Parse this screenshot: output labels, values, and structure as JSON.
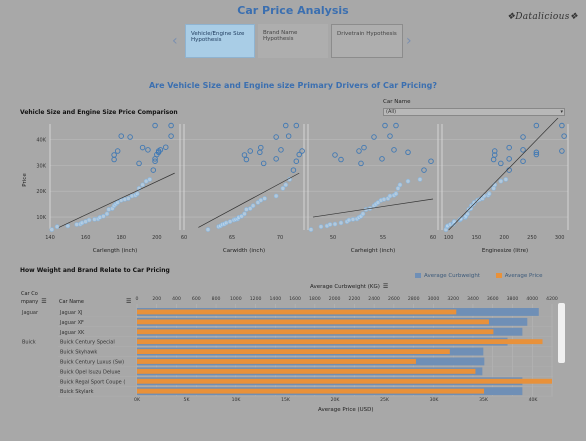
{
  "header": {
    "title": "Car Price Analysis",
    "logo": "❖Datalicious❖"
  },
  "tabs": [
    {
      "label": "Vehicle/Engine Size Hypothesis",
      "active": true
    },
    {
      "label": "Brand Name Hypothesis",
      "active": false
    },
    {
      "label": "Drivetrain Hypothesis",
      "active": false
    }
  ],
  "nav": {
    "left_icon": "chevron-left-icon",
    "right_icon": "chevron-right-icon",
    "left": "‹",
    "right": "›"
  },
  "subtitle": "Are Vehicle Size and Engine size Primary Drivers of Car Pricing?",
  "filter": {
    "label": "Car Name",
    "value": "(All)",
    "caret": "▾"
  },
  "section1": {
    "title": "Vehicle Size and Engine Size Price Comparison"
  },
  "section2": {
    "title": "How Weight and Brand Relate to Car Pricing"
  },
  "colors": {
    "curbweight": "#6f8fb6",
    "price": "#e8913a",
    "scatter": "#3f78b4",
    "accent": "#3b6fb0"
  },
  "chart_data": [
    {
      "type": "scatter",
      "ylabel": "Price",
      "y_ticks": [
        "40K",
        "30K",
        "20K",
        "10K"
      ],
      "y_values": [
        40000,
        30000,
        20000,
        10000
      ],
      "ylim": [
        5000,
        46000
      ],
      "panels": [
        {
          "xlabel": "Carlength (inch)",
          "x_ticks": [
            "140",
            "160",
            "180",
            "200"
          ],
          "x_values": [
            140,
            160,
            180,
            200
          ],
          "xlim": [
            140,
            213
          ],
          "trend": [
            [
              145,
              6000
            ],
            [
              210,
              27000
            ]
          ],
          "points": [
            [
              141,
              5151
            ],
            [
              144,
              6295
            ],
            [
              150,
              6575
            ],
            [
              155,
              7129
            ],
            [
              157,
              7295
            ],
            [
              158,
              7775
            ],
            [
              160,
              8249
            ],
            [
              162,
              8845
            ],
            [
              165,
              9095
            ],
            [
              167,
              9279
            ],
            [
              168,
              9895
            ],
            [
              170,
              10295
            ],
            [
              172,
              11245
            ],
            [
              173,
              12945
            ],
            [
              175,
              13295
            ],
            [
              176,
              14399
            ],
            [
              177,
              15040
            ],
            [
              178,
              15645
            ],
            [
              180,
              16500
            ],
            [
              182,
              16845
            ],
            [
              184,
              17199
            ],
            [
              186,
              18150
            ],
            [
              188,
              18420
            ],
            [
              189,
              19045
            ],
            [
              190,
              21105
            ],
            [
              192,
              22470
            ],
            [
              194,
              23875
            ],
            [
              196,
              24565
            ],
            [
              198,
              28176
            ],
            [
              199,
              31600
            ],
            [
              200,
              34184
            ],
            [
              201,
              35550
            ],
            [
              202,
              36000
            ],
            [
              205,
              37028
            ],
            [
              208,
              41315
            ],
            [
              176,
              32250
            ],
            [
              178,
              35550
            ],
            [
              185,
              40960
            ],
            [
              192,
              36880
            ],
            [
              199,
              45400
            ],
            [
              208,
              45400
            ],
            [
              180,
              41315
            ],
            [
              176,
              34028
            ],
            [
              190,
              30760
            ],
            [
              199,
              32528
            ],
            [
              195,
              36000
            ],
            [
              201,
              35056
            ]
          ]
        },
        {
          "xlabel": "Carwidth (inch)",
          "x_ticks": [
            "60",
            "65",
            "70"
          ],
          "x_values": [
            60,
            65,
            70
          ],
          "xlim": [
            60,
            72.5
          ],
          "trend": [
            [
              61.5,
              6000
            ],
            [
              72,
              27000
            ]
          ],
          "points": [
            [
              62.5,
              5151
            ],
            [
              63.6,
              6295
            ],
            [
              63.8,
              6575
            ],
            [
              64,
              7129
            ],
            [
              64.2,
              7295
            ],
            [
              64.4,
              7775
            ],
            [
              64.8,
              8249
            ],
            [
              65.2,
              8845
            ],
            [
              65.4,
              9095
            ],
            [
              65.6,
              9279
            ],
            [
              65.7,
              9895
            ],
            [
              66,
              10295
            ],
            [
              66.3,
              11245
            ],
            [
              66.5,
              12945
            ],
            [
              66.9,
              13295
            ],
            [
              67.2,
              14399
            ],
            [
              67.7,
              15645
            ],
            [
              68,
              16500
            ],
            [
              68.4,
              17199
            ],
            [
              69.6,
              18150
            ],
            [
              70.3,
              21105
            ],
            [
              70.6,
              22470
            ],
            [
              71,
              24565
            ],
            [
              71.4,
              28176
            ],
            [
              71.7,
              31600
            ],
            [
              72,
              34184
            ],
            [
              72.3,
              35550
            ],
            [
              66.5,
              32250
            ],
            [
              66.9,
              35550
            ],
            [
              68,
              36880
            ],
            [
              69.6,
              40960
            ],
            [
              70.6,
              45400
            ],
            [
              71.7,
              45400
            ],
            [
              70.9,
              41315
            ],
            [
              66.3,
              34028
            ],
            [
              68.3,
              30760
            ],
            [
              69.6,
              32528
            ],
            [
              70.1,
              36000
            ],
            [
              67.9,
              35056
            ]
          ]
        },
        {
          "xlabel": "Carheight (inch)",
          "x_ticks": [
            "50",
            "55",
            "60"
          ],
          "x_values": [
            50,
            55,
            60
          ],
          "xlim": [
            47.5,
            60.5
          ],
          "trend": [
            [
              48,
              10000
            ],
            [
              60,
              17000
            ]
          ],
          "points": [
            [
              47.8,
              5151
            ],
            [
              48.8,
              6295
            ],
            [
              49.4,
              6575
            ],
            [
              49.7,
              7129
            ],
            [
              50.2,
              7295
            ],
            [
              50.8,
              7775
            ],
            [
              51.4,
              8249
            ],
            [
              51.6,
              8845
            ],
            [
              52,
              9095
            ],
            [
              52.4,
              9279
            ],
            [
              52.6,
              9895
            ],
            [
              52.8,
              10295
            ],
            [
              53,
              11245
            ],
            [
              53.3,
              12945
            ],
            [
              53.7,
              13295
            ],
            [
              54.1,
              14399
            ],
            [
              54.3,
              15040
            ],
            [
              54.5,
              15645
            ],
            [
              54.8,
              16500
            ],
            [
              55.1,
              16845
            ],
            [
              55.5,
              17199
            ],
            [
              55.7,
              18150
            ],
            [
              56.1,
              18420
            ],
            [
              56.3,
              19045
            ],
            [
              56.5,
              21105
            ],
            [
              56.7,
              22470
            ],
            [
              57.5,
              23875
            ],
            [
              58.7,
              24565
            ],
            [
              59.1,
              28176
            ],
            [
              59.8,
              31600
            ],
            [
              50.8,
              32250
            ],
            [
              52.6,
              35550
            ],
            [
              53.1,
              36880
            ],
            [
              54.1,
              40960
            ],
            [
              55.2,
              45400
            ],
            [
              56.3,
              45400
            ],
            [
              55.7,
              41315
            ],
            [
              50.2,
              34028
            ],
            [
              52.8,
              30760
            ],
            [
              54.9,
              32528
            ],
            [
              56.1,
              36000
            ],
            [
              57.5,
              35056
            ]
          ]
        },
        {
          "xlabel": "Enginesize (litre)",
          "x_ticks": [
            "100",
            "150",
            "200",
            "250",
            "300"
          ],
          "x_values": [
            100,
            150,
            200,
            250,
            300
          ],
          "xlim": [
            88,
            315
          ],
          "trend": [
            [
              100,
              5000
            ],
            [
              300,
              49000
            ]
          ],
          "points": [
            [
              95,
              5151
            ],
            [
              97,
              6295
            ],
            [
              98,
              6575
            ],
            [
              103,
              7129
            ],
            [
              108,
              7295
            ],
            [
              109,
              7775
            ],
            [
              110,
              8249
            ],
            [
              120,
              8845
            ],
            [
              121,
              9095
            ],
            [
              122,
              9279
            ],
            [
              130,
              9895
            ],
            [
              131,
              10295
            ],
            [
              134,
              11245
            ],
            [
              136,
              12945
            ],
            [
              140,
              13295
            ],
            [
              141,
              14399
            ],
            [
              145,
              15040
            ],
            [
              146,
              15645
            ],
            [
              152,
              16500
            ],
            [
              156,
              16845
            ],
            [
              161,
              17199
            ],
            [
              164,
              18150
            ],
            [
              171,
              18420
            ],
            [
              173,
              19045
            ],
            [
              181,
              21105
            ],
            [
              183,
              22470
            ],
            [
              194,
              23875
            ],
            [
              203,
              24565
            ],
            [
              209,
              28176
            ],
            [
              234,
              31600
            ],
            [
              258,
              34184
            ],
            [
              304,
              35550
            ],
            [
              181,
              32250
            ],
            [
              183,
              35550
            ],
            [
              209,
              36880
            ],
            [
              234,
              40960
            ],
            [
              258,
              45400
            ],
            [
              304,
              45400
            ],
            [
              308,
              41315
            ],
            [
              183,
              34028
            ],
            [
              194,
              30760
            ],
            [
              209,
              32528
            ],
            [
              234,
              36000
            ],
            [
              258,
              35056
            ]
          ]
        }
      ]
    },
    {
      "type": "bar",
      "title": "",
      "top_axis_label": "Average Curbweight (KG)",
      "bottom_axis_label": "Average Price (USD)",
      "legend": [
        {
          "label": "Average Curbweight",
          "color": "#6f8fb6"
        },
        {
          "label": "Average Price",
          "color": "#e8913a"
        }
      ],
      "column_headers": {
        "company": "Car Co mpany",
        "car_name": "Car Name"
      },
      "top_ticks": [
        "0",
        "200",
        "400",
        "600",
        "800",
        "1000",
        "1200",
        "1400",
        "1600",
        "1800",
        "2000",
        "2200",
        "2400",
        "2600",
        "2800",
        "3000",
        "3200",
        "3400",
        "3600",
        "3800",
        "4000",
        "4200"
      ],
      "top_max": 4200,
      "bottom_ticks": [
        "0K",
        "5K",
        "10K",
        "15K",
        "20K",
        "25K",
        "30K",
        "35K",
        "40K"
      ],
      "bottom_max": 40000,
      "categories": [
        "Jaguar XJ",
        "Jaguar XF",
        "Jaguar XK",
        "Buick Century Special",
        "Buick Skyhawk",
        "Buick Century Luxus (Sw)",
        "Buick Opel Isuzu Deluxe",
        "Buick Regal Sport Coupe (",
        "Buick Skylark"
      ],
      "companies": [
        "Jaguar",
        "",
        "",
        "Buick",
        "",
        "",
        "",
        "",
        ""
      ],
      "series": [
        {
          "name": "Average Curbweight",
          "values": [
            4066,
            3950,
            3900,
            3750,
            3505,
            3515,
            3495,
            3900,
            3900
          ]
        },
        {
          "name": "Average Price",
          "values": [
            32250,
            35550,
            36000,
            40960,
            31600,
            28176,
            34184,
            45400,
            35056
          ]
        }
      ]
    }
  ]
}
